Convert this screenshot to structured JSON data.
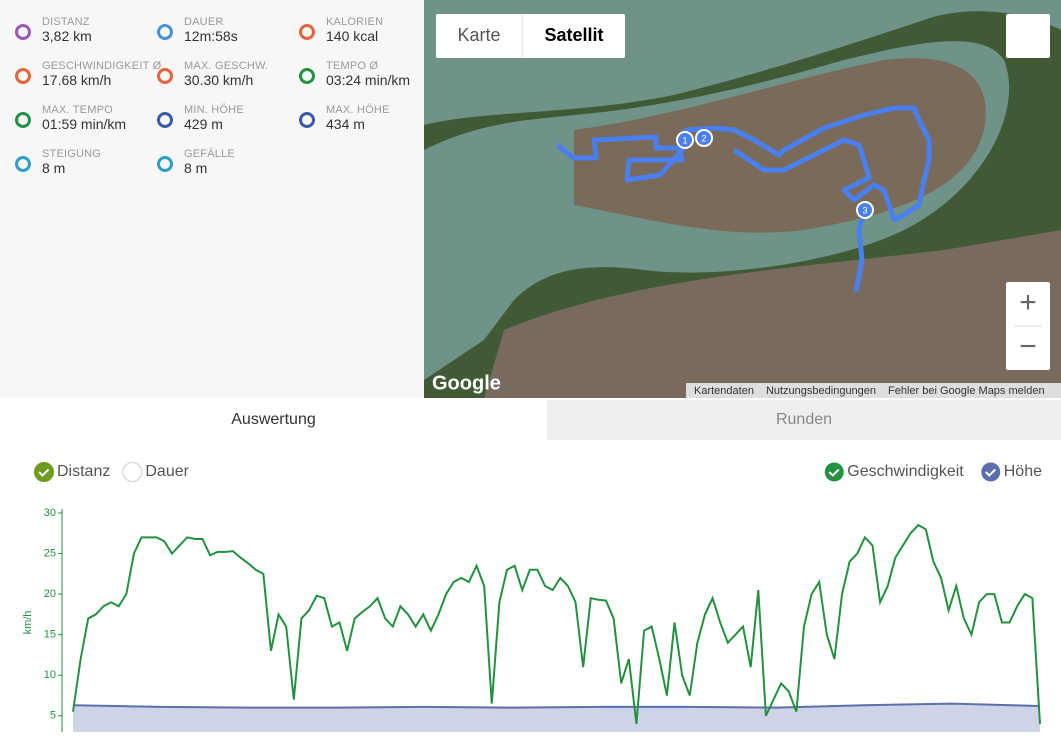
{
  "stats": [
    {
      "label": "DISTANZ",
      "value": "3,82 km",
      "icon_color": "#9b59b6"
    },
    {
      "label": "DAUER",
      "value": "12m:58s",
      "icon_color": "#4a90d9"
    },
    {
      "label": "KALORIEN",
      "value": "140 kcal",
      "icon_color": "#e8643c"
    },
    {
      "label": "GESCHWINDIGKEIT Ø",
      "value": "17.68 km/h",
      "icon_color": "#e8643c"
    },
    {
      "label": "MAX. GESCHW.",
      "value": "30.30 km/h",
      "icon_color": "#e8643c"
    },
    {
      "label": "TEMPO Ø",
      "value": "03:24 min/km",
      "icon_color": "#23913f"
    },
    {
      "label": "MAX. TEMPO",
      "value": "01:59 min/km",
      "icon_color": "#23913f"
    },
    {
      "label": "MIN. HÖHE",
      "value": "429 m",
      "icon_color": "#3b5ba9"
    },
    {
      "label": "MAX. HÖHE",
      "value": "434 m",
      "icon_color": "#3b5ba9"
    },
    {
      "label": "STEIGUNG",
      "value": "8 m",
      "icon_color": "#2aa0c8"
    },
    {
      "label": "GEFÄLLE",
      "value": "8 m",
      "icon_color": "#2aa0c8"
    }
  ],
  "map": {
    "buttons": [
      "Karte",
      "Satellit"
    ],
    "zoom": [
      "+",
      "−"
    ],
    "logo": "Google",
    "markers": [
      "1",
      "2",
      "3"
    ],
    "footer": [
      "Kartendaten",
      "Nutzungsbedingungen",
      "Fehler bei Google Maps melden"
    ]
  },
  "tabs": [
    "Auswertung",
    "Runden"
  ],
  "chart_controls": [
    {
      "label": "Distanz",
      "checked": true,
      "color": "#6d9c1f"
    },
    {
      "label": "Dauer",
      "checked": false,
      "color": "#ffffff"
    }
  ],
  "chart_data": {
    "type": "line",
    "y_label": "km/h",
    "ylim": [
      3,
      30
    ],
    "yticks": [
      5,
      10,
      15,
      20,
      25,
      30
    ],
    "series": [
      {
        "name": "Geschwindigkeit",
        "color": "#23913f",
        "values": [
          5.5,
          12,
          17,
          17.5,
          18.5,
          19,
          18.5,
          20,
          25,
          27,
          27,
          27,
          26.5,
          25,
          26,
          27,
          26.8,
          26.8,
          24.8,
          25.2,
          25.2,
          25.3,
          24.5,
          23.8,
          23,
          22.5,
          13,
          17.5,
          16,
          7,
          17,
          18,
          19.8,
          19.5,
          16,
          16.5,
          13,
          17,
          17.8,
          18.5,
          19.5,
          17,
          16,
          18.5,
          17.5,
          16,
          17.5,
          15.5,
          17.5,
          20,
          21.5,
          22,
          21.5,
          23.5,
          21,
          6.5,
          19,
          23,
          23.5,
          20.5,
          23,
          23,
          21,
          20.5,
          22,
          21,
          19,
          11,
          19.5,
          19.3,
          19.2,
          17,
          9,
          12,
          4,
          15.5,
          16,
          12,
          7.5,
          16.5,
          10,
          7.5,
          14,
          17.5,
          19.5,
          16.5,
          14,
          15,
          16,
          11,
          20.5,
          5,
          7,
          9,
          8,
          5.5,
          16,
          20,
          21.5,
          15,
          12,
          20,
          24,
          25,
          27,
          26,
          19,
          21,
          24.5,
          26,
          27.5,
          28.5,
          28,
          24,
          22,
          18,
          21,
          17,
          15,
          19,
          20,
          20,
          16.5,
          16.5,
          18.5,
          20,
          19.5,
          4
        ]
      },
      {
        "name": "Höhe",
        "color": "#5b6fae",
        "fill": "#cfd3e8",
        "values": [
          6.3,
          6.1,
          6.0,
          6.0,
          6.1,
          6.0,
          6.1,
          6.1,
          6.0,
          6.3,
          6.5,
          6.2
        ]
      }
    ]
  }
}
